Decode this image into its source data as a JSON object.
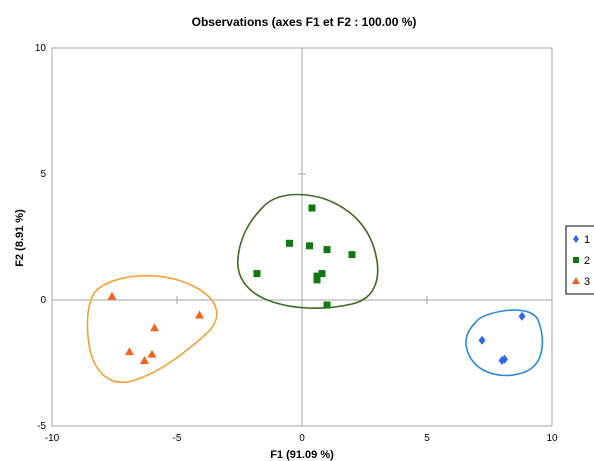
{
  "chart_data": {
    "type": "scatter",
    "title": "Observations (axes F1 et F2 : 100.00 %)",
    "xlabel": "F1 (91.09 %)",
    "ylabel": "F2 (8.91 %)",
    "xlim": [
      -10,
      10
    ],
    "ylim": [
      -5,
      10
    ],
    "xticks": [
      "-10",
      "-5",
      "0",
      "5",
      "10"
    ],
    "yticks": [
      "-5",
      "0",
      "5",
      "10"
    ],
    "grid": false,
    "legend_position": "right",
    "series": [
      {
        "name": "1",
        "marker": "diamond",
        "color": "#3366ee",
        "hull_color": "#2a8ad4",
        "points": [
          [
            8.8,
            -0.65
          ],
          [
            7.2,
            -1.6
          ],
          [
            8.0,
            -2.4
          ],
          [
            8.1,
            -2.35
          ]
        ]
      },
      {
        "name": "2",
        "marker": "square",
        "color": "#117711",
        "hull_color": "#3e6b22",
        "points": [
          [
            0.4,
            3.65
          ],
          [
            -0.5,
            2.25
          ],
          [
            0.3,
            2.15
          ],
          [
            1.0,
            2.0
          ],
          [
            2.0,
            1.8
          ],
          [
            -1.8,
            1.05
          ],
          [
            0.6,
            0.95
          ],
          [
            0.8,
            1.05
          ],
          [
            0.6,
            0.8
          ],
          [
            1.0,
            -0.2
          ]
        ]
      },
      {
        "name": "3",
        "marker": "triangle",
        "color": "#ee6622",
        "hull_color": "#f4a035",
        "points": [
          [
            -7.6,
            0.15
          ],
          [
            -4.1,
            -0.6
          ],
          [
            -5.9,
            -1.1
          ],
          [
            -6.9,
            -2.05
          ],
          [
            -6.0,
            -2.15
          ],
          [
            -6.3,
            -2.4
          ]
        ]
      }
    ]
  }
}
